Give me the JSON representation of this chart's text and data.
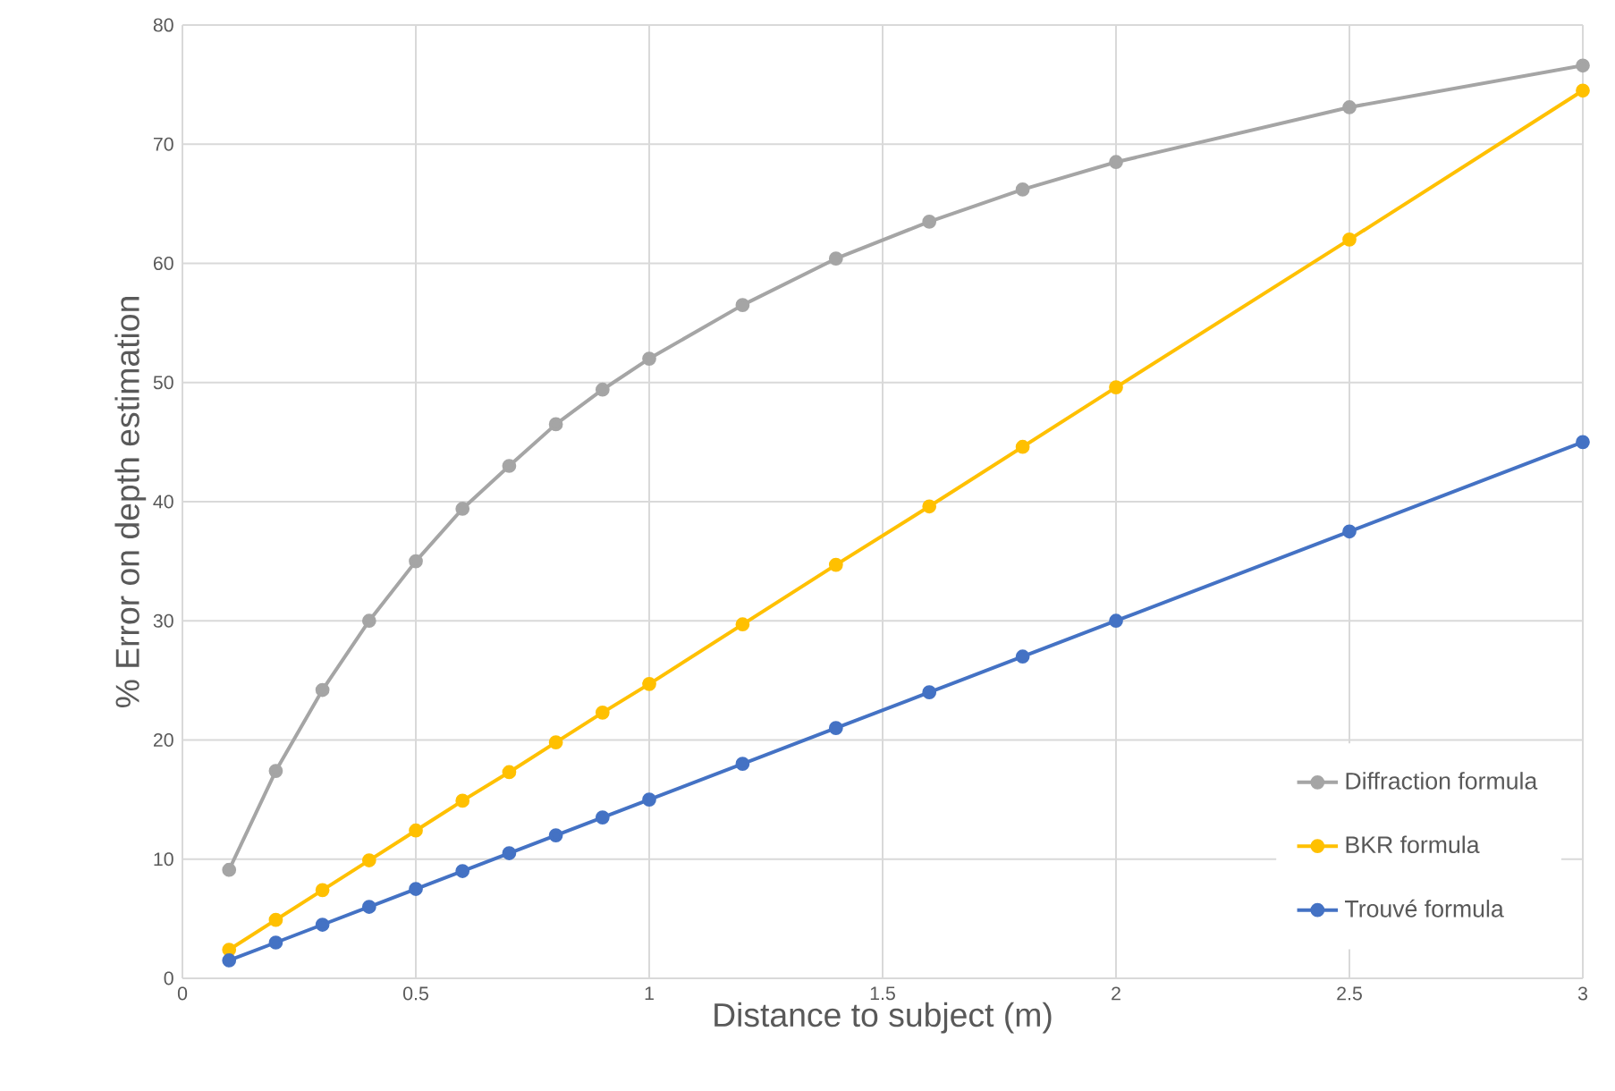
{
  "chart_data": {
    "type": "line",
    "xlabel": "Distance to subject (m)",
    "ylabel": "% Error on depth estimation",
    "x": [
      0.1,
      0.2,
      0.3,
      0.4,
      0.5,
      0.6,
      0.7,
      0.8,
      0.9,
      1.0,
      1.2,
      1.4,
      1.6,
      1.8,
      2.0,
      2.5,
      3.0
    ],
    "series": [
      {
        "name": "Diffraction formula",
        "color": "#a5a5a5",
        "values": [
          9.1,
          17.4,
          24.2,
          30,
          35,
          39.4,
          43,
          46.5,
          49.4,
          52,
          56.5,
          60.4,
          63.5,
          66.2,
          68.5,
          73.1,
          76.6
        ]
      },
      {
        "name": "BKR formula",
        "color": "#ffc000",
        "values": [
          2.4,
          4.9,
          7.4,
          9.9,
          12.4,
          14.9,
          17.3,
          19.8,
          22.3,
          24.7,
          29.7,
          34.7,
          39.6,
          44.6,
          49.6,
          62,
          74.5
        ]
      },
      {
        "name": "Trouvé formula",
        "color": "#4472c4",
        "values": [
          1.5,
          3,
          4.5,
          6,
          7.5,
          9,
          10.5,
          12,
          13.5,
          15,
          18,
          21,
          24,
          27,
          30,
          37.5,
          45
        ]
      }
    ],
    "xlim": [
      0,
      3
    ],
    "ylim": [
      0,
      80
    ],
    "xticks": [
      0,
      0.5,
      1,
      1.5,
      2,
      2.5,
      3
    ],
    "yticks": [
      0,
      10,
      20,
      30,
      40,
      50,
      60,
      70,
      80
    ],
    "grid": true,
    "legend": "bottom right",
    "marker": "circle",
    "line_style": "solid"
  }
}
